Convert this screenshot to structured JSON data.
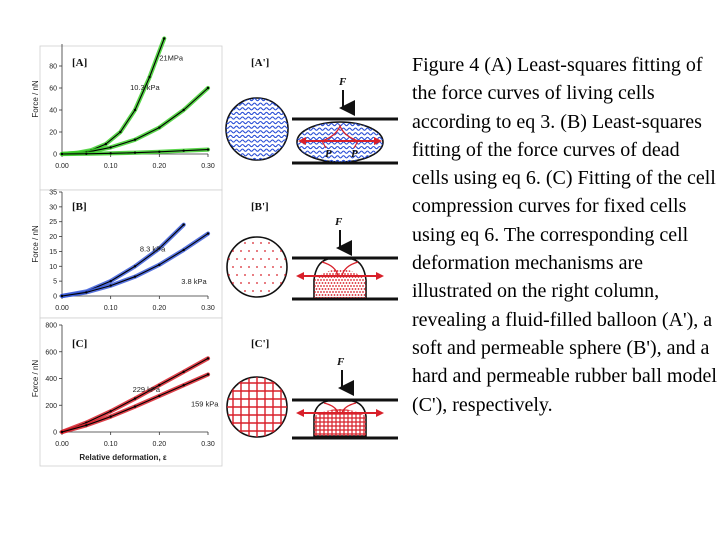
{
  "caption": "Figure 4 (A) Least-squares fitting of the force curves of living cells according to eq 3. (B) Least-squares fitting of the force curves of dead cells using eq 6. (C) Fitting of the cell compression curves for fixed cells using eq 6. The corresponding cell deformation mechanisms are illustrated on the right column, revealing a fluid-filled balloon (A'), a soft and permeable sphere (B'), and a hard and permeable rubber ball model (C'), respectively.",
  "diagrams": [
    {
      "label": "[A']",
      "force_label": "F",
      "pressure_label_left": "P",
      "pressure_label_right": "P"
    },
    {
      "label": "[B']",
      "force_label": "F"
    },
    {
      "label": "[C']",
      "force_label": "F"
    }
  ],
  "colors": {
    "panel_a": "#3ccf2a",
    "panel_b": "#3a5bd9",
    "panel_c": "#d8202a",
    "fit": "#000000"
  },
  "chart_data": [
    {
      "type": "line",
      "panel_label": "[A]",
      "ylabel": "Force / nN",
      "xlim": [
        0,
        0.3
      ],
      "ylim": [
        0,
        100
      ],
      "xticks": [
        0.0,
        0.1,
        0.2,
        0.3
      ],
      "xtick_labels": [
        "0.00",
        "0.10",
        "0.20",
        "0.30"
      ],
      "yticks": [
        0,
        20,
        40,
        60,
        80
      ],
      "ytick_labels": [
        "0",
        "20",
        "40",
        "60",
        "80"
      ],
      "series": [
        {
          "name": "21MPa",
          "label_x": 0.2,
          "label_y": 85,
          "x": [
            0,
            0.03,
            0.06,
            0.09,
            0.12,
            0.15,
            0.18,
            0.21
          ],
          "values": [
            0,
            1,
            3.5,
            9,
            20,
            40,
            70,
            105
          ]
        },
        {
          "name": "10.3 kPa",
          "label_x": 0.14,
          "label_y": 58,
          "x": [
            0,
            0.05,
            0.1,
            0.15,
            0.2,
            0.25,
            0.3
          ],
          "values": [
            0,
            1.5,
            6,
            13,
            24,
            40,
            60
          ]
        },
        {
          "name": "",
          "x": [
            0,
            0.05,
            0.1,
            0.15,
            0.2,
            0.25,
            0.3
          ],
          "values": [
            0,
            0.2,
            0.6,
            1.2,
            2,
            3,
            4
          ]
        }
      ]
    },
    {
      "type": "line",
      "panel_label": "[B]",
      "ylabel": "Force / nN",
      "xlim": [
        0,
        0.3
      ],
      "ylim": [
        0,
        35
      ],
      "xticks": [
        0.0,
        0.1,
        0.2,
        0.3
      ],
      "xtick_labels": [
        "0.00",
        "0.10",
        "0.20",
        "0.30"
      ],
      "yticks": [
        0,
        5,
        10,
        15,
        20,
        25,
        30,
        35
      ],
      "ytick_labels": [
        "0",
        "5",
        "10",
        "15",
        "20",
        "25",
        "30",
        "35"
      ],
      "series": [
        {
          "name": "8.3 kPa",
          "label_x": 0.16,
          "label_y": 15,
          "x": [
            0,
            0.05,
            0.1,
            0.15,
            0.2,
            0.25
          ],
          "values": [
            0,
            1.5,
            5,
            10,
            16,
            24
          ]
        },
        {
          "name": "3.8 kPa",
          "label_x": 0.245,
          "label_y": 4,
          "x": [
            0,
            0.05,
            0.1,
            0.15,
            0.2,
            0.25,
            0.3
          ],
          "values": [
            0,
            1.2,
            3.5,
            6.5,
            10.5,
            15.5,
            21
          ]
        }
      ]
    },
    {
      "type": "line",
      "panel_label": "[C]",
      "ylabel": "Force / nN",
      "xlabel": "Relative deformation, ε",
      "xlim": [
        0,
        0.3
      ],
      "ylim": [
        0,
        800
      ],
      "xticks": [
        0.0,
        0.1,
        0.2,
        0.3
      ],
      "xtick_labels": [
        "0.00",
        "0.10",
        "0.20",
        "0.30"
      ],
      "yticks": [
        0,
        200,
        400,
        600,
        800
      ],
      "ytick_labels": [
        "0",
        "200",
        "400",
        "600",
        "800"
      ],
      "series": [
        {
          "name": "229 kPa",
          "label_x": 0.145,
          "label_y": 300,
          "x": [
            0,
            0.05,
            0.1,
            0.15,
            0.2,
            0.25,
            0.3
          ],
          "values": [
            0,
            70,
            155,
            250,
            350,
            450,
            550
          ]
        },
        {
          "name": "159 kPa",
          "label_x": 0.265,
          "label_y": 190,
          "x": [
            0,
            0.05,
            0.1,
            0.15,
            0.2,
            0.25,
            0.3
          ],
          "values": [
            0,
            50,
            115,
            190,
            270,
            350,
            430
          ]
        }
      ]
    }
  ]
}
